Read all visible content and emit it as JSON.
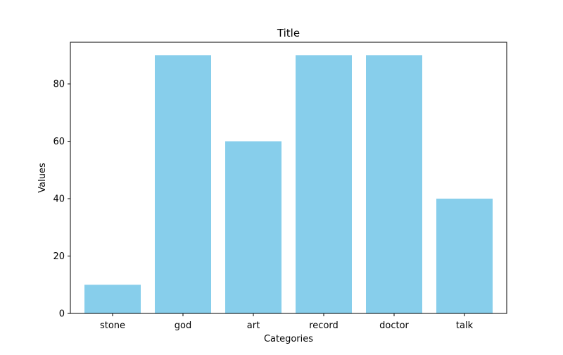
{
  "chart_data": {
    "type": "bar",
    "title": "Title",
    "xlabel": "Categories",
    "ylabel": "Values",
    "categories": [
      "stone",
      "god",
      "art",
      "record",
      "doctor",
      "talk"
    ],
    "values": [
      10,
      90,
      60,
      90,
      90,
      40
    ],
    "ylim": [
      0,
      94.5
    ],
    "yticks": [
      0,
      20,
      40,
      60,
      80
    ],
    "bar_color": "#87CEEB",
    "grid": false,
    "legend": "none"
  }
}
